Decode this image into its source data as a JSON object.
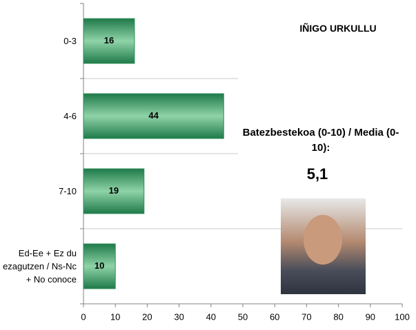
{
  "chart_data": {
    "type": "hbar",
    "categories": [
      "0-3",
      "4-6",
      "7-10",
      "Ed-Ee + Ez du ezagutzen / Ns-Nc + No conoce"
    ],
    "values": [
      16,
      44,
      19,
      10
    ],
    "color": "#2e8b57",
    "xlim": [
      0,
      100
    ],
    "xticks": [
      0,
      10,
      20,
      30,
      40,
      50,
      60,
      70,
      80,
      90,
      100
    ],
    "grid": true
  },
  "annotations": {
    "name": "IÑIGO URKULLU",
    "mean_label": "Batezbestekoa (0-10) / Media (0-10):",
    "mean_value": "5,1"
  }
}
